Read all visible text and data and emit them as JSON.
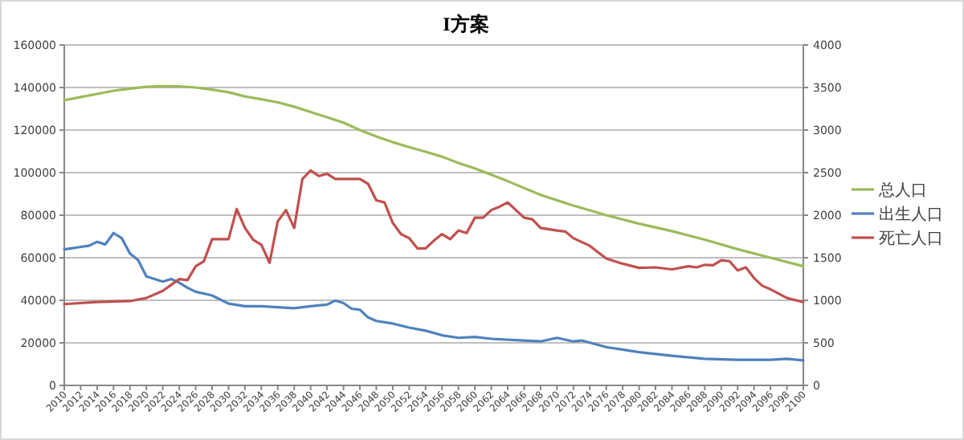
{
  "chart_data": {
    "type": "line",
    "title": "I方案",
    "xlim": [
      2010,
      2100
    ],
    "xticks": [
      2010,
      2012,
      2014,
      2016,
      2018,
      2020,
      2022,
      2024,
      2026,
      2028,
      2030,
      2032,
      2034,
      2036,
      2038,
      2040,
      2042,
      2044,
      2046,
      2048,
      2050,
      2052,
      2054,
      2056,
      2058,
      2060,
      2062,
      2064,
      2066,
      2068,
      2070,
      2072,
      2074,
      2076,
      2078,
      2080,
      2082,
      2084,
      2086,
      2088,
      2090,
      2092,
      2094,
      2096,
      2098,
      2100
    ],
    "ylim": [
      0,
      160000
    ],
    "yticks": [
      0,
      20000,
      40000,
      60000,
      80000,
      100000,
      120000,
      140000,
      160000
    ],
    "y2lim": [
      0,
      4000
    ],
    "y2ticks": [
      0,
      500,
      1000,
      1500,
      2000,
      2500,
      3000,
      3500,
      4000
    ],
    "grid": "y",
    "legend": "right",
    "marker": "none",
    "line_style": "solid",
    "series": [
      {
        "name": "总人口",
        "color": "#9bbb59",
        "x": [
          2010,
          2012,
          2014,
          2016,
          2018,
          2020,
          2022,
          2024,
          2026,
          2028,
          2030,
          2032,
          2034,
          2036,
          2038,
          2040,
          2042,
          2044,
          2046,
          2048,
          2050,
          2052,
          2054,
          2056,
          2058,
          2060,
          2064,
          2068,
          2072,
          2076,
          2080,
          2084,
          2088,
          2092,
          2096,
          2100
        ],
        "values": [
          134000,
          135500,
          137000,
          138500,
          139500,
          140300,
          140600,
          140500,
          140000,
          139000,
          137800,
          135800,
          134500,
          133000,
          131000,
          128500,
          126000,
          123500,
          120000,
          117000,
          114300,
          112000,
          109800,
          107500,
          104500,
          102000,
          96000,
          89500,
          84500,
          80000,
          76000,
          72500,
          68500,
          64000,
          60000,
          56000
        ]
      },
      {
        "name": "出生人口",
        "color": "#4f81bd",
        "axis": "y2",
        "x": [
          2010,
          2012,
          2013,
          2014,
          2015,
          2016,
          2017,
          2018,
          2019,
          2020,
          2022,
          2023,
          2024,
          2025,
          2026,
          2028,
          2030,
          2032,
          2034,
          2036,
          2038,
          2040,
          2042,
          2043,
          2044,
          2045,
          2046,
          2047,
          2048,
          2050,
          2052,
          2054,
          2056,
          2058,
          2060,
          2062,
          2066,
          2068,
          2070,
          2072,
          2073,
          2076,
          2080,
          2084,
          2088,
          2092,
          2096,
          2098,
          2100
        ],
        "values": [
          1598,
          1627,
          1640,
          1687,
          1657,
          1790,
          1730,
          1550,
          1472,
          1280,
          1220,
          1250,
          1207,
          1147,
          1100,
          1057,
          961,
          931,
          930,
          919,
          907,
          931,
          949,
          997,
          967,
          901,
          889,
          799,
          757,
          727,
          679,
          643,
          589,
          559,
          570,
          547,
          528,
          517,
          559,
          517,
          528,
          450,
          390,
          348,
          312,
          300,
          300,
          312,
          294
        ]
      },
      {
        "name": "死亡人口",
        "color": "#c0504d",
        "axis": "y2",
        "x": [
          2010,
          2014,
          2018,
          2020,
          2022,
          2024,
          2025,
          2026,
          2027,
          2028,
          2030,
          2031,
          2032,
          2033,
          2034,
          2035,
          2036,
          2037,
          2038,
          2039,
          2040,
          2041,
          2042,
          2043,
          2046,
          2047,
          2048,
          2049,
          2050,
          2051,
          2052,
          2053,
          2054,
          2055,
          2056,
          2057,
          2058,
          2059,
          2060,
          2061,
          2062,
          2063,
          2064,
          2065,
          2066,
          2067,
          2068,
          2070,
          2071,
          2072,
          2074,
          2076,
          2078,
          2080,
          2082,
          2084,
          2086,
          2087,
          2088,
          2089,
          2090,
          2091,
          2092,
          2093,
          2094,
          2095,
          2096,
          2098,
          2100
        ],
        "values": [
          955,
          979,
          991,
          1027,
          1111,
          1249,
          1237,
          1399,
          1459,
          1718,
          1718,
          2072,
          1850,
          1712,
          1652,
          1441,
          1928,
          2060,
          1850,
          2425,
          2525,
          2460,
          2487,
          2425,
          2425,
          2368,
          2175,
          2150,
          1910,
          1778,
          1730,
          1610,
          1610,
          1700,
          1778,
          1718,
          1820,
          1790,
          1970,
          1970,
          2060,
          2100,
          2150,
          2060,
          1970,
          1952,
          1850,
          1820,
          1808,
          1730,
          1640,
          1490,
          1430,
          1381,
          1387,
          1363,
          1400,
          1387,
          1417,
          1411,
          1471,
          1460,
          1351,
          1387,
          1261,
          1171,
          1129,
          1027,
          979
        ]
      }
    ]
  }
}
